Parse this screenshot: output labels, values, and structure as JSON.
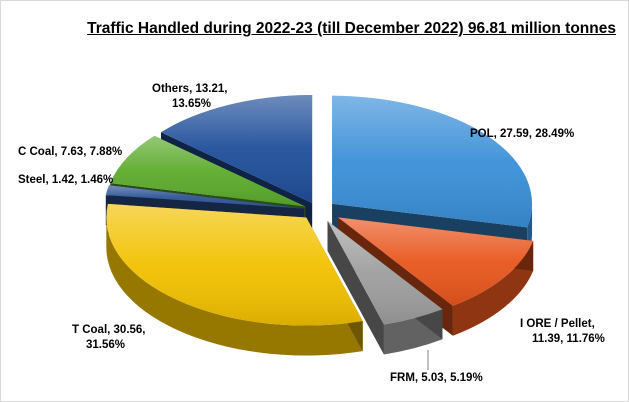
{
  "chart_data": {
    "type": "pie",
    "title": "Traffic Handled during 2022-23 (till December 2022) 96.81 million tonnes",
    "slices": [
      {
        "name": "POL",
        "value": 27.59,
        "percent": "28.49%",
        "label_lines": [
          "POL, 27.59,  28.49%"
        ],
        "color": "#3a8fd8"
      },
      {
        "name": "I ORE / Pellet",
        "value": 11.39,
        "percent": "11.76%",
        "label_lines": [
          "I ORE / Pellet,",
          "11.39, 11.76%"
        ],
        "color": "#e8561d"
      },
      {
        "name": "FRM",
        "value": 5.03,
        "percent": "5.19%",
        "label_lines": [
          "FRM, 5.03, 5.19%"
        ],
        "color": "#9e9e9e"
      },
      {
        "name": "T Coal",
        "value": 30.56,
        "percent": "31.56%",
        "label_lines": [
          "T Coal, 30.56,",
          "31.56%"
        ],
        "color": "#f2c100"
      },
      {
        "name": "Steel",
        "value": 1.42,
        "percent": "1.46%",
        "label_lines": [
          "Steel, 1.42, 1.46%"
        ],
        "color": "#2f5597"
      },
      {
        "name": "C Coal",
        "value": 7.63,
        "percent": "7.88%",
        "label_lines": [
          "C Coal, 7.63, 7.88%"
        ],
        "color": "#5cab2c"
      },
      {
        "name": "Others",
        "value": 13.21,
        "percent": "13.65%",
        "label_lines": [
          "Others, 13.21,",
          "13.65%"
        ],
        "color": "#1f4e9a"
      }
    ],
    "legend": "none",
    "grid": false
  }
}
